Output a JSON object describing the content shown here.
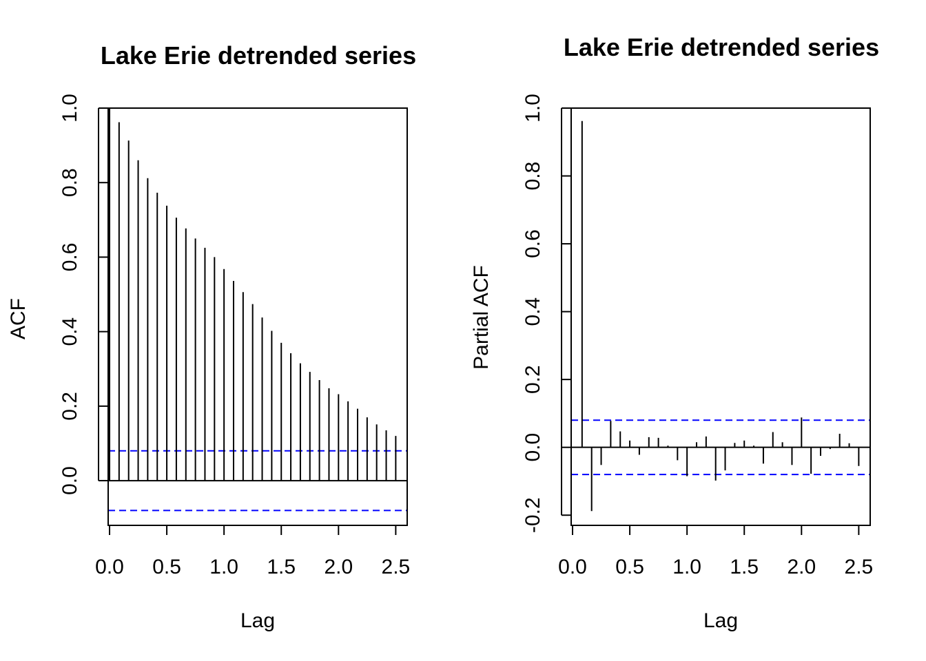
{
  "chart_data": [
    {
      "type": "bar",
      "subtype": "acf",
      "title": "Lake Erie detrended series",
      "xlabel": "Lag",
      "ylabel": "ACF",
      "xlim": [
        0,
        2.6
      ],
      "ylim": [
        -0.12,
        1.0
      ],
      "xticks": [
        0.0,
        0.5,
        1.0,
        1.5,
        2.0,
        2.5
      ],
      "xtick_labels": [
        "0.0",
        "0.5",
        "1.0",
        "1.5",
        "2.0",
        "2.5"
      ],
      "yticks": [
        0.0,
        0.2,
        0.4,
        0.6,
        0.8,
        1.0
      ],
      "ytick_labels": [
        "0.0",
        "0.2",
        "0.4",
        "0.6",
        "0.8",
        "1.0"
      ],
      "ci": 0.08,
      "lags": [
        0.0,
        0.0833,
        0.1667,
        0.25,
        0.3333,
        0.4167,
        0.5,
        0.5833,
        0.6667,
        0.75,
        0.8333,
        0.9167,
        1.0,
        1.0833,
        1.1667,
        1.25,
        1.3333,
        1.4167,
        1.5,
        1.5833,
        1.6667,
        1.75,
        1.8333,
        1.9167,
        2.0,
        2.0833,
        2.1667,
        2.25,
        2.3333,
        2.4167,
        2.5
      ],
      "values": [
        1.0,
        0.962,
        0.913,
        0.86,
        0.812,
        0.773,
        0.738,
        0.706,
        0.677,
        0.65,
        0.625,
        0.6,
        0.568,
        0.536,
        0.506,
        0.474,
        0.438,
        0.402,
        0.37,
        0.342,
        0.315,
        0.292,
        0.27,
        0.248,
        0.232,
        0.213,
        0.193,
        0.17,
        0.151,
        0.135,
        0.12
      ]
    },
    {
      "type": "bar",
      "subtype": "pacf",
      "title": "Lake Erie detrended series",
      "xlabel": "Lag",
      "ylabel": "Partial ACF",
      "xlim": [
        0,
        2.6
      ],
      "ylim": [
        -0.23,
        1.0
      ],
      "xticks": [
        0.0,
        0.5,
        1.0,
        1.5,
        2.0,
        2.5
      ],
      "xtick_labels": [
        "0.0",
        "0.5",
        "1.0",
        "1.5",
        "2.0",
        "2.5"
      ],
      "yticks": [
        -0.2,
        0.0,
        0.2,
        0.4,
        0.6,
        0.8,
        1.0
      ],
      "ytick_labels": [
        "-0.2",
        "0.0",
        "0.2",
        "0.4",
        "0.6",
        "0.8",
        "1.0"
      ],
      "ci": 0.08,
      "lags": [
        0.0833,
        0.1667,
        0.25,
        0.3333,
        0.4167,
        0.5,
        0.5833,
        0.6667,
        0.75,
        0.8333,
        0.9167,
        1.0,
        1.0833,
        1.1667,
        1.25,
        1.3333,
        1.4167,
        1.5,
        1.5833,
        1.6667,
        1.75,
        1.8333,
        1.9167,
        2.0,
        2.0833,
        2.1667,
        2.25,
        2.3333,
        2.4167,
        2.5
      ],
      "values": [
        0.962,
        -0.188,
        -0.052,
        0.078,
        0.047,
        0.02,
        -0.022,
        0.03,
        0.028,
        0.005,
        -0.038,
        -0.085,
        0.015,
        0.032,
        -0.098,
        -0.068,
        0.013,
        0.02,
        0.005,
        -0.048,
        0.045,
        0.015,
        -0.052,
        0.088,
        -0.078,
        -0.025,
        -0.005,
        0.04,
        0.012,
        -0.055
      ]
    }
  ]
}
